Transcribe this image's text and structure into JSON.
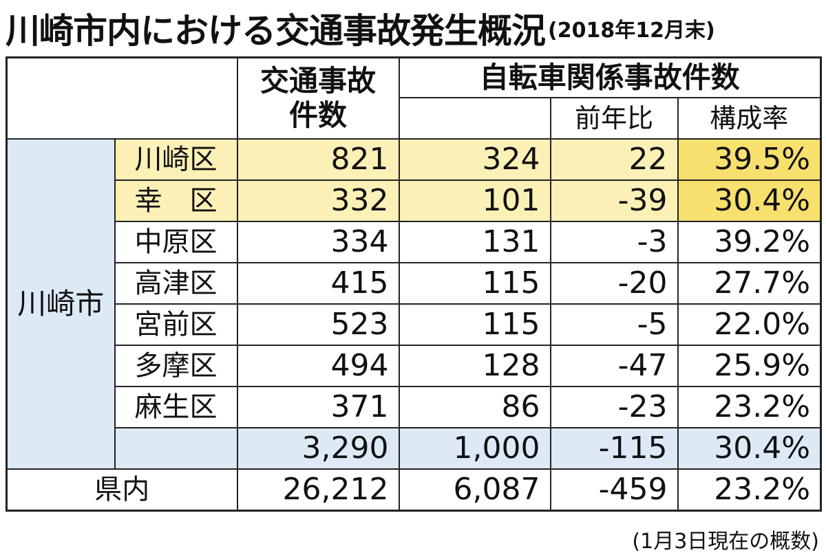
{
  "title": {
    "main": "川崎市内における交通事故発生概況",
    "sub": "(2018年12月末)"
  },
  "header": {
    "accidents": [
      "交通事故",
      "件数"
    ],
    "bicycle_group": "自転車関係事故件数",
    "yoy": "前年比",
    "ratio": "構成率"
  },
  "city_label": "川崎市",
  "rows": [
    {
      "ward": "川崎区",
      "accidents": "821",
      "bicycle": "324",
      "yoy": "22",
      "ratio": "39.5%"
    },
    {
      "ward": "幸　区",
      "accidents": "332",
      "bicycle": "101",
      "yoy": "-39",
      "ratio": "30.4%"
    },
    {
      "ward": "中原区",
      "accidents": "334",
      "bicycle": "131",
      "yoy": "-3",
      "ratio": "39.2%"
    },
    {
      "ward": "高津区",
      "accidents": "415",
      "bicycle": "115",
      "yoy": "-20",
      "ratio": "27.7%"
    },
    {
      "ward": "宮前区",
      "accidents": "523",
      "bicycle": "115",
      "yoy": "-5",
      "ratio": "22.0%"
    },
    {
      "ward": "多摩区",
      "accidents": "494",
      "bicycle": "128",
      "yoy": "-47",
      "ratio": "25.9%"
    },
    {
      "ward": "麻生区",
      "accidents": "371",
      "bicycle": "86",
      "yoy": "-23",
      "ratio": "23.2%"
    }
  ],
  "city_total": {
    "accidents": "3,290",
    "bicycle": "1,000",
    "yoy": "-115",
    "ratio": "30.4%"
  },
  "prefecture": {
    "label": "県内",
    "accidents": "26,212",
    "bicycle": "6,087",
    "yoy": "-459",
    "ratio": "23.2%"
  },
  "note": "(1月3日現在の概数)",
  "colors": {
    "blue_fill": "#ddeaf6",
    "yellow_fill": "#fbf1b6",
    "yellow_dark": "#f7e06e"
  }
}
